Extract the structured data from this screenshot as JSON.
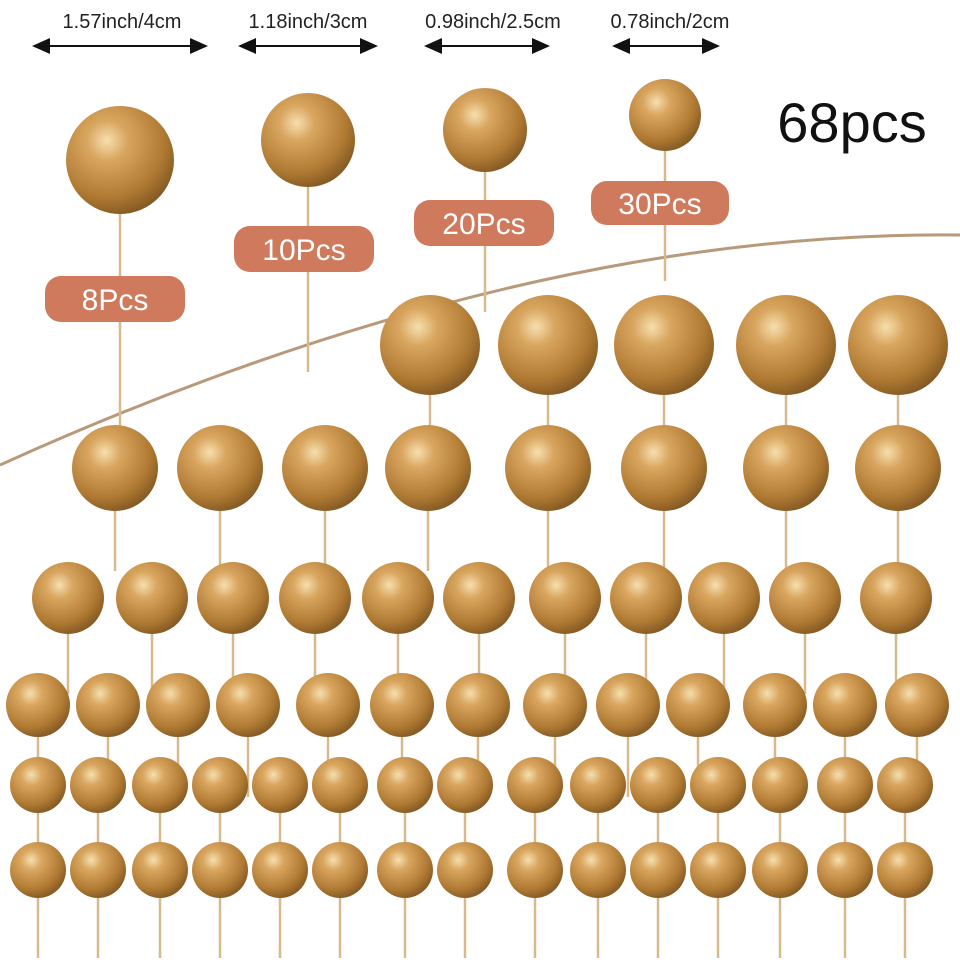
{
  "items": [
    {
      "size": "1.57inch/4cm",
      "count": "8Pcs"
    },
    {
      "size": "1.18inch/3cm",
      "count": "10Pcs"
    },
    {
      "size": "0.98inch/2.5cm",
      "count": "20Pcs"
    },
    {
      "size": "0.78inch/2cm",
      "count": "30Pcs"
    }
  ],
  "total": "68pcs"
}
